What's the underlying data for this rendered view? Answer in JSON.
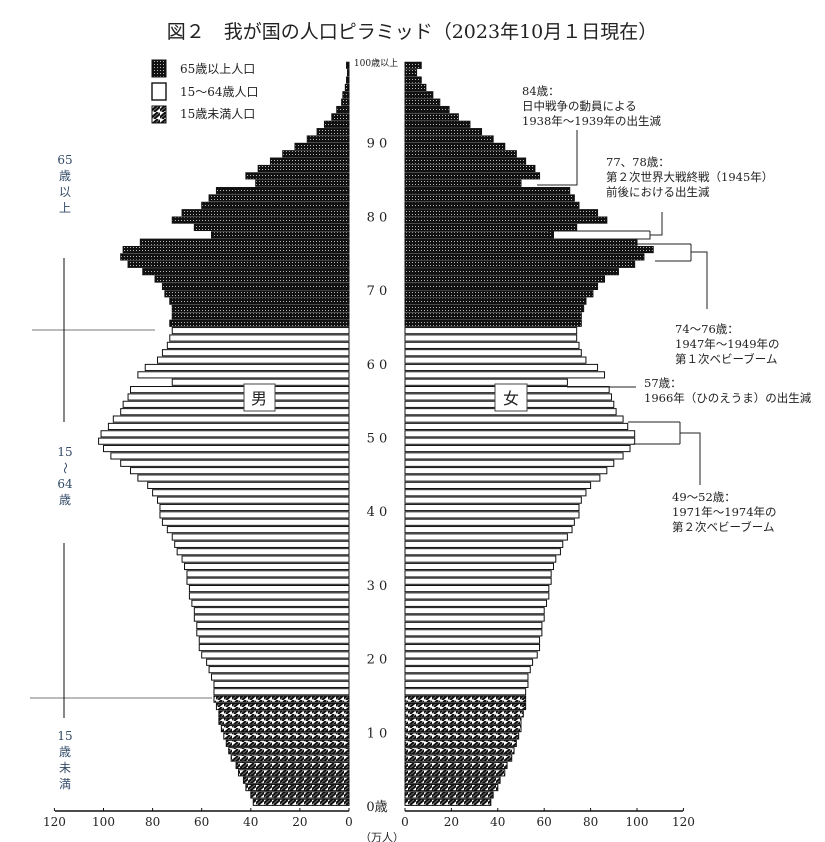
{
  "chart_data": {
    "type": "bar",
    "orientation": "horizontal-pyramid",
    "title": "図２　我が国の人口ピラミッド（2023年10月１日現在）",
    "unit_label": "（万人）",
    "age_tick_labels": [
      "0歳",
      "1 0",
      "2 0",
      "3 0",
      "4 0",
      "5 0",
      "6 0",
      "7 0",
      "8 0",
      "9 0"
    ],
    "top_age_label": "100歳以上",
    "x_tick_labels_male": [
      "120",
      "100",
      "80",
      "60",
      "40",
      "20",
      "0"
    ],
    "x_tick_labels_female": [
      "0",
      "20",
      "40",
      "60",
      "80",
      "100",
      "120"
    ],
    "xlim": [
      0,
      120
    ],
    "categories_note_ages": "0-99 and 100+",
    "legend": [
      {
        "label": "65歳以上人口",
        "pattern": "dotted-black"
      },
      {
        "label": "15～64歳人口",
        "pattern": "white"
      },
      {
        "label": "15歳未満人口",
        "pattern": "hatched"
      }
    ],
    "series": [
      {
        "name": "男",
        "values": [
          39,
          40,
          42,
          43,
          45,
          46,
          48,
          49,
          50,
          51,
          52,
          53,
          53,
          54,
          55,
          55,
          55,
          56,
          57,
          58,
          60,
          61,
          61,
          62,
          62,
          63,
          63,
          64,
          65,
          65,
          66,
          66,
          67,
          68,
          70,
          71,
          72,
          74,
          76,
          77,
          77,
          78,
          80,
          82,
          86,
          89,
          93,
          97,
          100,
          102,
          101,
          98,
          96,
          93,
          92,
          90,
          89,
          72,
          86,
          83,
          78,
          76,
          74,
          73,
          72,
          73,
          72,
          72,
          73,
          75,
          76,
          79,
          84,
          90,
          93,
          92,
          85,
          56,
          63,
          72,
          68,
          60,
          57,
          54,
          38,
          42,
          37,
          32,
          27,
          22,
          17,
          13,
          10,
          7,
          5,
          3,
          2.5,
          1.5,
          1,
          0.6,
          1
        ]
      },
      {
        "name": "女",
        "values": [
          37,
          38,
          40,
          41,
          43,
          44,
          46,
          47,
          48,
          49,
          50,
          50,
          51,
          52,
          52,
          52,
          53,
          53,
          54,
          55,
          57,
          58,
          58,
          59,
          59,
          60,
          60,
          61,
          62,
          62,
          63,
          63,
          64,
          65,
          67,
          68,
          70,
          72,
          73,
          75,
          75,
          76,
          78,
          80,
          84,
          87,
          90,
          94,
          97,
          99,
          99,
          96,
          94,
          91,
          90,
          89,
          88,
          70,
          86,
          83,
          78,
          76,
          75,
          74,
          74,
          76,
          76,
          77,
          78,
          81,
          83,
          86,
          92,
          99,
          103,
          107,
          100,
          64,
          74,
          87,
          83,
          75,
          73,
          71,
          50,
          58,
          56,
          52,
          48,
          43,
          38,
          33,
          28,
          23,
          19,
          15,
          12,
          9,
          7,
          5,
          7
        ]
      }
    ],
    "side_labels": {
      "elderly": [
        "65",
        "歳",
        "以",
        "上"
      ],
      "working": [
        "15",
        "～",
        "64",
        "歳"
      ],
      "children": [
        "15",
        "歳",
        "未",
        "満"
      ]
    },
    "annotations": [
      {
        "lines": [
          "84歳：",
          "日中戦争の動員による",
          "1938年～1939年の出生減"
        ]
      },
      {
        "lines": [
          "77、78歳：",
          "第２次世界大戦終戦（1945年）",
          "前後における出生減"
        ]
      },
      {
        "lines": [
          "74～76歳：",
          "1947年～1949年の",
          "第１次ベビーブーム"
        ]
      },
      {
        "lines": [
          "57歳：",
          "1966年（ひのえうま）の出生減"
        ]
      },
      {
        "lines": [
          "49～52歳：",
          "1971年～1974年の",
          "第２次ベビーブーム"
        ]
      }
    ]
  }
}
